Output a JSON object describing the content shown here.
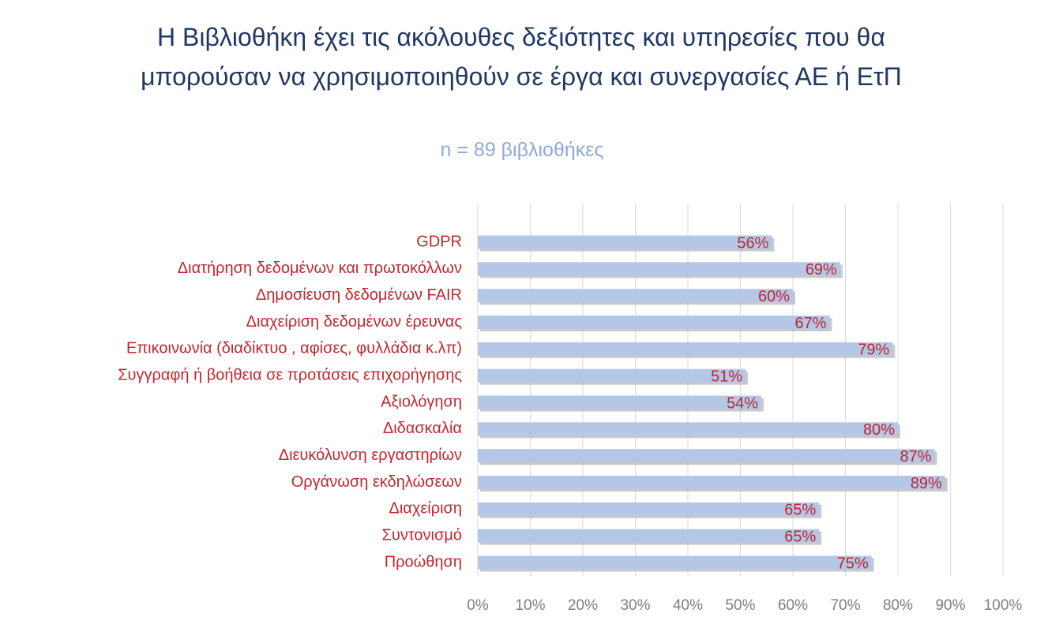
{
  "chart_data": {
    "type": "bar",
    "orientation": "horizontal",
    "title": "Η Βιβλιοθήκη έχει τις ακόλουθες δεξιότητες και υπηρεσίες που θα μπορούσαν να χρησιμοποιηθούν σε έργα και συνεργασίες ΑΕ ή ΕτΠ",
    "subtitle": "n = 89 βιβλιοθήκες",
    "categories": [
      "GDPR",
      "Διατήρηση δεδομένων και πρωτοκόλλων",
      "Δημοσίευση δεδομένων FAIR",
      "Διαχείριση δεδομένων έρευνας",
      "Επικοινωνία (διαδίκτυο , αφίσες, φυλλάδια κ.λπ)",
      "Συγγραφή ή βοήθεια σε προτάσεις επιχορήγησης",
      "Αξιολόγηση",
      "Διδασκαλία",
      "Διευκόλυνση εργαστηρίων",
      "Οργάνωση εκδηλώσεων",
      "Διαχείριση",
      "Συντονισμό",
      "Προώθηση"
    ],
    "values": [
      56,
      69,
      60,
      67,
      79,
      51,
      54,
      80,
      87,
      89,
      65,
      65,
      75
    ],
    "value_labels": [
      "56%",
      "69%",
      "60%",
      "67%",
      "79%",
      "51%",
      "54%",
      "80%",
      "87%",
      "89%",
      "65%",
      "65%",
      "75%"
    ],
    "color": "#b4c7e7",
    "xlim": [
      0,
      100
    ],
    "xticks": [
      {
        "value": 0,
        "label": "0%"
      },
      {
        "value": 10,
        "label": "10%"
      },
      {
        "value": 20,
        "label": "20%"
      },
      {
        "value": 30,
        "label": "30%"
      },
      {
        "value": 40,
        "label": "40%"
      },
      {
        "value": 50,
        "label": "50%"
      },
      {
        "value": 60,
        "label": "60%"
      },
      {
        "value": 70,
        "label": "70%"
      },
      {
        "value": 80,
        "label": "80%"
      },
      {
        "value": 90,
        "label": "90%"
      },
      {
        "value": 100,
        "label": "100%"
      }
    ],
    "grid": true
  }
}
